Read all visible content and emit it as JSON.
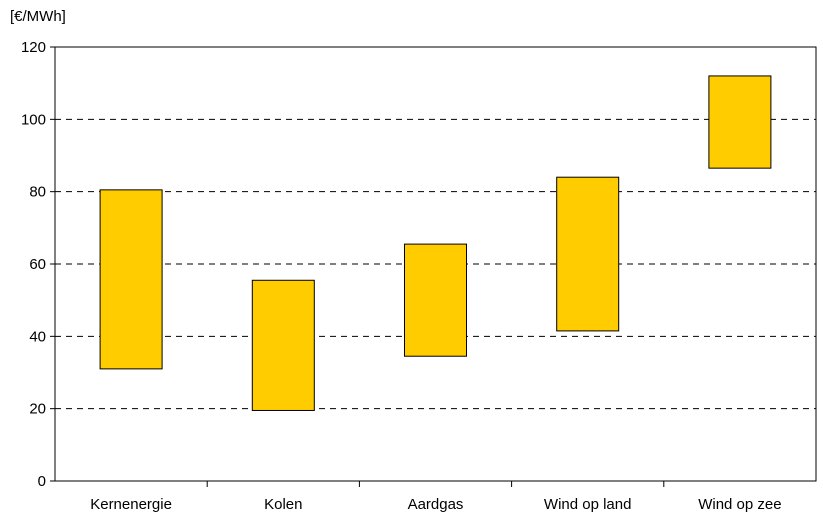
{
  "chart_data": {
    "type": "bar",
    "subtype": "floating-range",
    "ylabel": "[€/MWh]",
    "ylim": [
      0,
      120
    ],
    "yticks": [
      0,
      20,
      40,
      60,
      80,
      100,
      120
    ],
    "grid": "horizontal dashed",
    "categories": [
      "Kernenergie",
      "Kolen",
      "Aardgas",
      "Wind op land",
      "Wind op zee"
    ],
    "ranges": [
      {
        "low": 31,
        "high": 80.5
      },
      {
        "low": 19.5,
        "high": 55.5
      },
      {
        "low": 34.5,
        "high": 65.5
      },
      {
        "low": 41.5,
        "high": 84
      },
      {
        "low": 86.5,
        "high": 112
      }
    ],
    "bar_color": "#FFCC00"
  }
}
